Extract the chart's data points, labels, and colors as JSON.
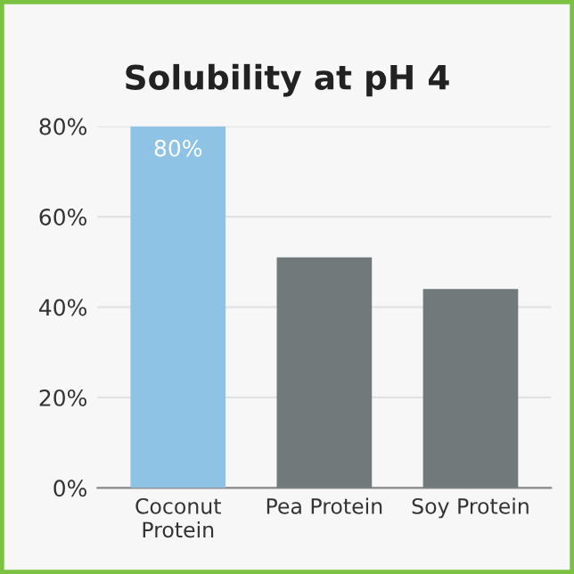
{
  "chart_data": {
    "type": "bar",
    "title": "Solubility at pH 4",
    "categories": [
      "Coconut\nProtein",
      "Pea Protein",
      "Soy Protein"
    ],
    "values": [
      80,
      51,
      44
    ],
    "colors": [
      "#8ec3e6",
      "#72797a",
      "#72797a"
    ],
    "value_labels": [
      "80%",
      null,
      null
    ],
    "ylim": [
      0,
      80
    ],
    "yticks": [
      {
        "value": 0,
        "label": "0%"
      },
      {
        "value": 20,
        "label": "20%"
      },
      {
        "value": 40,
        "label": "40%"
      },
      {
        "value": 60,
        "label": "60%"
      },
      {
        "value": 80,
        "label": "80%"
      }
    ],
    "grid": "y",
    "legend": false
  }
}
